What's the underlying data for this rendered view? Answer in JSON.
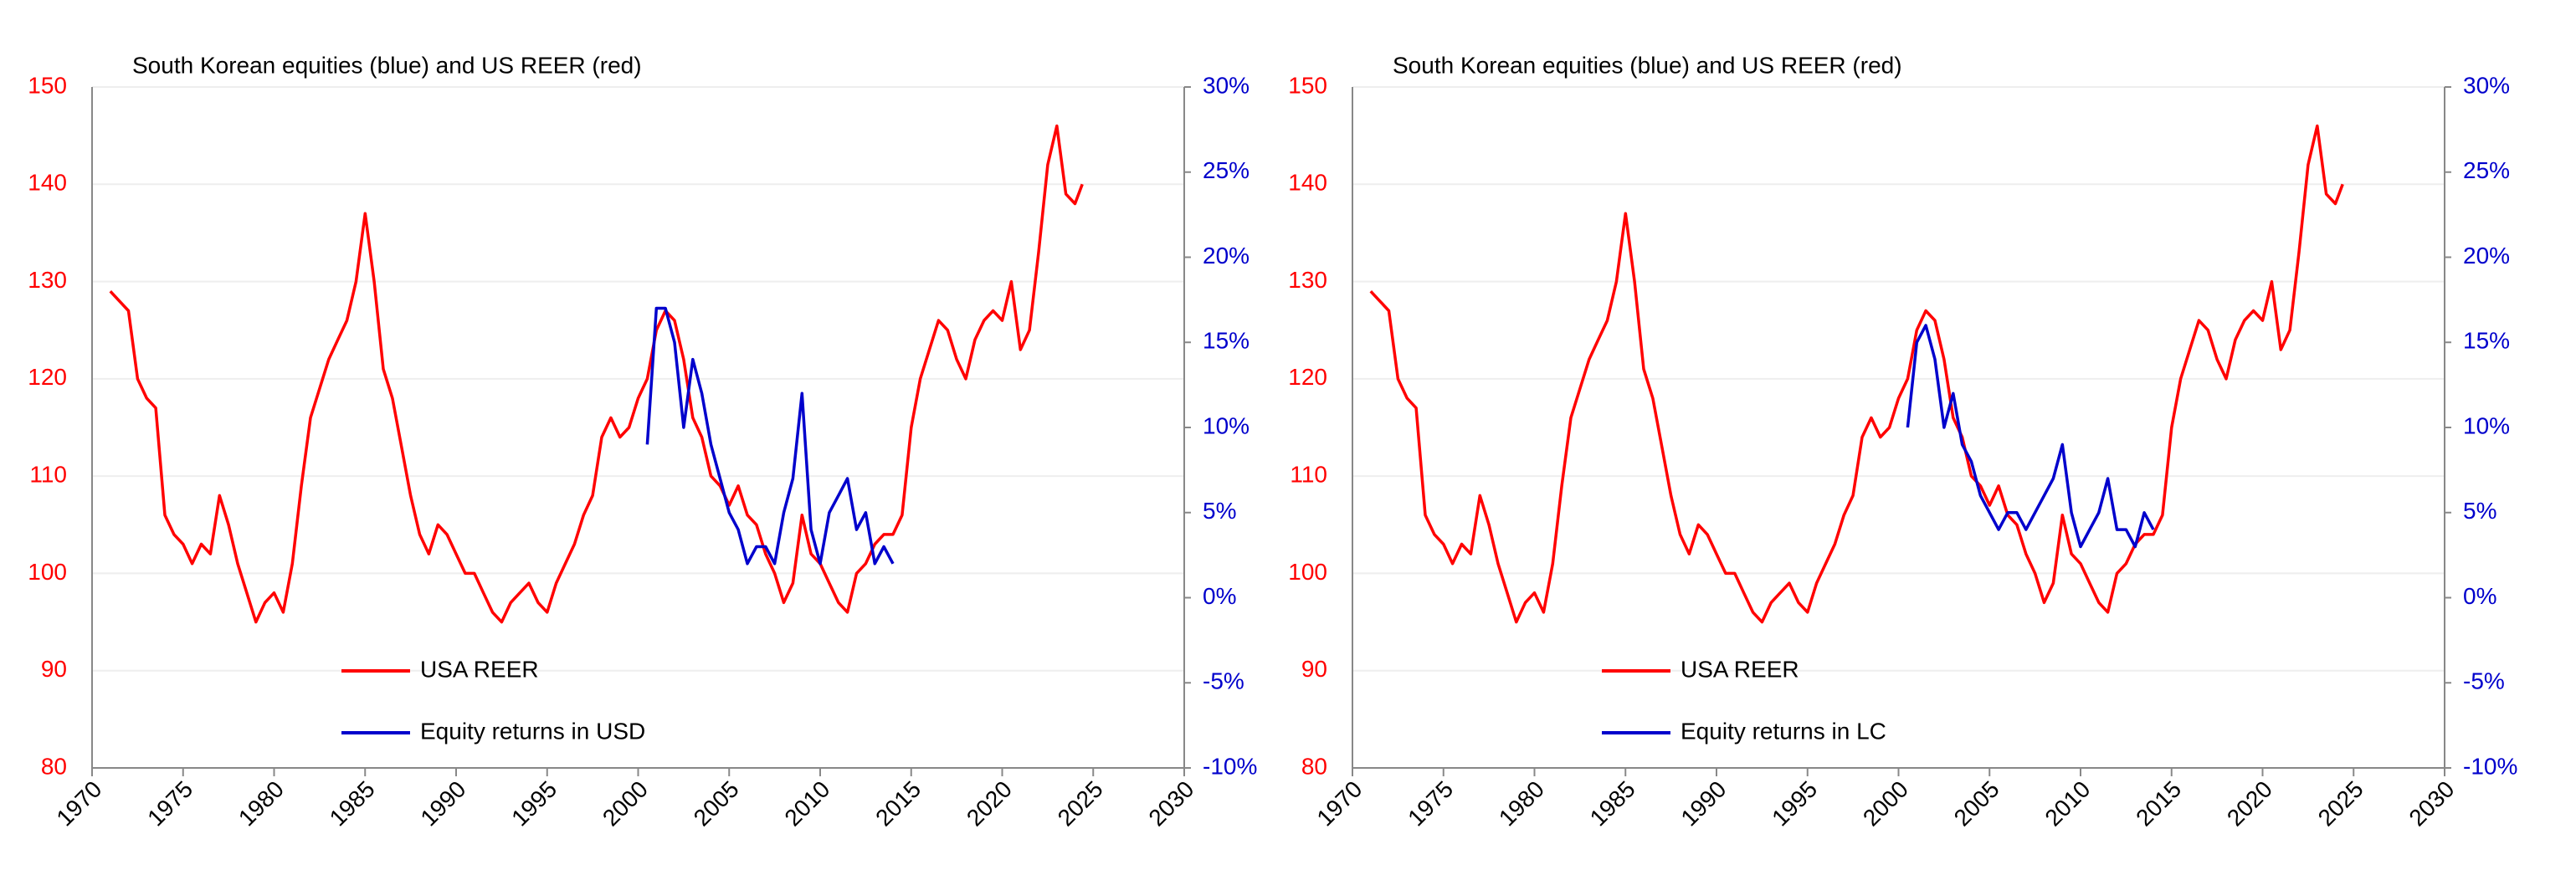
{
  "chart_data": [
    {
      "type": "line",
      "title": "South Korean equities (blue) and US REER (red)",
      "xlim": [
        1970,
        2030
      ],
      "xticks": [
        1970,
        1975,
        1980,
        1985,
        1990,
        1995,
        2000,
        2005,
        2010,
        2015,
        2020,
        2025,
        2030
      ],
      "ylim": [
        80,
        150
      ],
      "yticks": [
        80,
        90,
        100,
        110,
        120,
        130,
        140,
        150
      ],
      "ytick_color": "#ff0000",
      "y2lim": [
        -10,
        30
      ],
      "y2ticks": [
        {
          "value": -10,
          "label": "-10%"
        },
        {
          "value": -5,
          "label": "-5%"
        },
        {
          "value": 0,
          "label": "0%"
        },
        {
          "value": 5,
          "label": "5%"
        },
        {
          "value": 10,
          "label": "10%"
        },
        {
          "value": 15,
          "label": "15%"
        },
        {
          "value": 20,
          "label": "20%"
        },
        {
          "value": 25,
          "label": "25%"
        },
        {
          "value": 30,
          "label": "30%"
        }
      ],
      "y2tick_color": "#0000cc",
      "grid": true,
      "legend": "lower center",
      "series": [
        {
          "name": "USA REER",
          "color": "#ff0000",
          "x": [
            1971,
            1971.5,
            1972,
            1972.5,
            1973,
            1973.5,
            1974,
            1974.5,
            1975,
            1975.5,
            1976,
            1976.5,
            1977,
            1977.5,
            1978,
            1978.5,
            1979,
            1979.5,
            1980,
            1980.5,
            1981,
            1981.5,
            1982,
            1982.5,
            1983,
            1983.5,
            1984,
            1984.5,
            1985,
            1985.5,
            1986,
            1986.5,
            1987,
            1987.5,
            1988,
            1988.5,
            1989,
            1989.5,
            1990,
            1990.5,
            1991,
            1991.5,
            1992,
            1992.5,
            1993,
            1993.5,
            1994,
            1994.5,
            1995,
            1995.5,
            1996,
            1996.5,
            1997,
            1997.5,
            1998,
            1998.5,
            1999,
            1999.5,
            2000,
            2000.5,
            2001,
            2001.5,
            2002,
            2002.5,
            2003,
            2003.5,
            2004,
            2004.5,
            2005,
            2005.5,
            2006,
            2006.5,
            2007,
            2007.5,
            2008,
            2008.5,
            2009,
            2009.5,
            2010,
            2010.5,
            2011,
            2011.5,
            2012,
            2012.5,
            2013,
            2013.5,
            2014,
            2014.5,
            2015,
            2015.5,
            2016,
            2016.5,
            2017,
            2017.5,
            2018,
            2018.5,
            2019,
            2019.5,
            2020,
            2020.5,
            2021,
            2021.5,
            2022,
            2022.5,
            2023,
            2023.5,
            2024,
            2024.4
          ],
          "values": [
            129,
            128,
            127,
            120,
            118,
            117,
            106,
            104,
            103,
            101,
            103,
            102,
            108,
            105,
            101,
            98,
            95,
            97,
            98,
            96,
            101,
            109,
            116,
            119,
            122,
            124,
            126,
            130,
            137,
            130,
            121,
            118,
            113,
            108,
            104,
            102,
            105,
            104,
            102,
            100,
            100,
            98,
            96,
            95,
            97,
            98,
            99,
            97,
            96,
            99,
            101,
            103,
            106,
            108,
            114,
            116,
            114,
            115,
            118,
            120,
            125,
            127,
            126,
            122,
            116,
            114,
            110,
            109,
            107,
            109,
            106,
            105,
            102,
            100,
            97,
            99,
            106,
            102,
            101,
            99,
            97,
            96,
            100,
            101,
            103,
            104,
            104,
            106,
            115,
            120,
            123,
            126,
            125,
            122,
            120,
            124,
            126,
            127,
            126,
            130,
            123,
            125,
            133,
            142,
            146,
            139,
            138,
            140
          ]
        },
        {
          "name": "Equity returns in USD",
          "color": "#0000cc",
          "axis": "y2",
          "x": [
            2000.5,
            2001,
            2001.5,
            2002,
            2002.5,
            2003,
            2003.5,
            2004,
            2004.5,
            2005,
            2005.5,
            2006,
            2006.5,
            2007,
            2007.5,
            2008,
            2008.5,
            2009,
            2009.5,
            2010,
            2010.5,
            2011,
            2011.5,
            2012,
            2012.5,
            2013,
            2013.5,
            2014
          ],
          "values": [
            9,
            17,
            17,
            15,
            10,
            14,
            12,
            9,
            7,
            5,
            4,
            2,
            3,
            3,
            2,
            5,
            7,
            12,
            4,
            2,
            5,
            6,
            7,
            4,
            5,
            2,
            3,
            2
          ]
        }
      ]
    },
    {
      "type": "line",
      "title": "South Korean equities (blue) and US REER (red)",
      "xlim": [
        1970,
        2030
      ],
      "xticks": [
        1970,
        1975,
        1980,
        1985,
        1990,
        1995,
        2000,
        2005,
        2010,
        2015,
        2020,
        2025,
        2030
      ],
      "ylim": [
        80,
        150
      ],
      "yticks": [
        80,
        90,
        100,
        110,
        120,
        130,
        140,
        150
      ],
      "ytick_color": "#ff0000",
      "y2lim": [
        -10,
        30
      ],
      "y2ticks": [
        {
          "value": -10,
          "label": "-10%"
        },
        {
          "value": -5,
          "label": "-5%"
        },
        {
          "value": 0,
          "label": "0%"
        },
        {
          "value": 5,
          "label": "5%"
        },
        {
          "value": 10,
          "label": "10%"
        },
        {
          "value": 15,
          "label": "15%"
        },
        {
          "value": 20,
          "label": "20%"
        },
        {
          "value": 25,
          "label": "25%"
        },
        {
          "value": 30,
          "label": "30%"
        }
      ],
      "y2tick_color": "#0000cc",
      "grid": true,
      "legend": "lower center",
      "series": [
        {
          "name": "USA REER",
          "color": "#ff0000",
          "x": [
            1971,
            1971.5,
            1972,
            1972.5,
            1973,
            1973.5,
            1974,
            1974.5,
            1975,
            1975.5,
            1976,
            1976.5,
            1977,
            1977.5,
            1978,
            1978.5,
            1979,
            1979.5,
            1980,
            1980.5,
            1981,
            1981.5,
            1982,
            1982.5,
            1983,
            1983.5,
            1984,
            1984.5,
            1985,
            1985.5,
            1986,
            1986.5,
            1987,
            1987.5,
            1988,
            1988.5,
            1989,
            1989.5,
            1990,
            1990.5,
            1991,
            1991.5,
            1992,
            1992.5,
            1993,
            1993.5,
            1994,
            1994.5,
            1995,
            1995.5,
            1996,
            1996.5,
            1997,
            1997.5,
            1998,
            1998.5,
            1999,
            1999.5,
            2000,
            2000.5,
            2001,
            2001.5,
            2002,
            2002.5,
            2003,
            2003.5,
            2004,
            2004.5,
            2005,
            2005.5,
            2006,
            2006.5,
            2007,
            2007.5,
            2008,
            2008.5,
            2009,
            2009.5,
            2010,
            2010.5,
            2011,
            2011.5,
            2012,
            2012.5,
            2013,
            2013.5,
            2014,
            2014.5,
            2015,
            2015.5,
            2016,
            2016.5,
            2017,
            2017.5,
            2018,
            2018.5,
            2019,
            2019.5,
            2020,
            2020.5,
            2021,
            2021.5,
            2022,
            2022.5,
            2023,
            2023.5,
            2024,
            2024.4
          ],
          "values": [
            129,
            128,
            127,
            120,
            118,
            117,
            106,
            104,
            103,
            101,
            103,
            102,
            108,
            105,
            101,
            98,
            95,
            97,
            98,
            96,
            101,
            109,
            116,
            119,
            122,
            124,
            126,
            130,
            137,
            130,
            121,
            118,
            113,
            108,
            104,
            102,
            105,
            104,
            102,
            100,
            100,
            98,
            96,
            95,
            97,
            98,
            99,
            97,
            96,
            99,
            101,
            103,
            106,
            108,
            114,
            116,
            114,
            115,
            118,
            120,
            125,
            127,
            126,
            122,
            116,
            114,
            110,
            109,
            107,
            109,
            106,
            105,
            102,
            100,
            97,
            99,
            106,
            102,
            101,
            99,
            97,
            96,
            100,
            101,
            103,
            104,
            104,
            106,
            115,
            120,
            123,
            126,
            125,
            122,
            120,
            124,
            126,
            127,
            126,
            130,
            123,
            125,
            133,
            142,
            146,
            139,
            138,
            140
          ]
        },
        {
          "name": "Equity returns in LC",
          "color": "#0000cc",
          "axis": "y2",
          "x": [
            2000.5,
            2001,
            2001.5,
            2002,
            2002.5,
            2003,
            2003.5,
            2004,
            2004.5,
            2005,
            2005.5,
            2006,
            2006.5,
            2007,
            2007.5,
            2008,
            2008.5,
            2009,
            2009.5,
            2010,
            2010.5,
            2011,
            2011.5,
            2012,
            2012.5,
            2013,
            2013.5,
            2014
          ],
          "values": [
            10,
            15,
            16,
            14,
            10,
            12,
            9,
            8,
            6,
            5,
            4,
            5,
            5,
            4,
            5,
            6,
            7,
            9,
            5,
            3,
            4,
            5,
            7,
            4,
            4,
            3,
            5,
            4
          ]
        }
      ]
    }
  ]
}
